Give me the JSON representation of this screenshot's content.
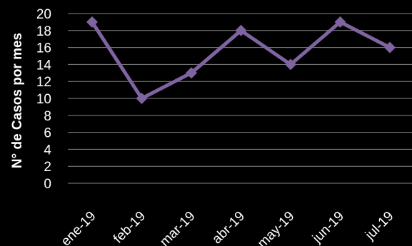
{
  "chart_data": {
    "type": "line",
    "title": "",
    "xlabel": "",
    "ylabel": "N° de Casos por mes",
    "categories": [
      "ene-19",
      "feb-19",
      "mar-19",
      "abr-19",
      "may-19",
      "jun-19",
      "jul-19"
    ],
    "series": [
      {
        "values": [
          19,
          10,
          13,
          18,
          14,
          19,
          16
        ]
      }
    ],
    "ylim": [
      0,
      20
    ],
    "yticks": [
      "0",
      "2",
      "4",
      "6",
      "8",
      "10",
      "12",
      "14",
      "16",
      "18",
      "20"
    ],
    "grid": true,
    "legend": "none"
  },
  "colors": {
    "background": "#000000",
    "line": "#8064a2",
    "marker": "#8064a2",
    "grid": "#858585",
    "text": "#ffffff"
  }
}
